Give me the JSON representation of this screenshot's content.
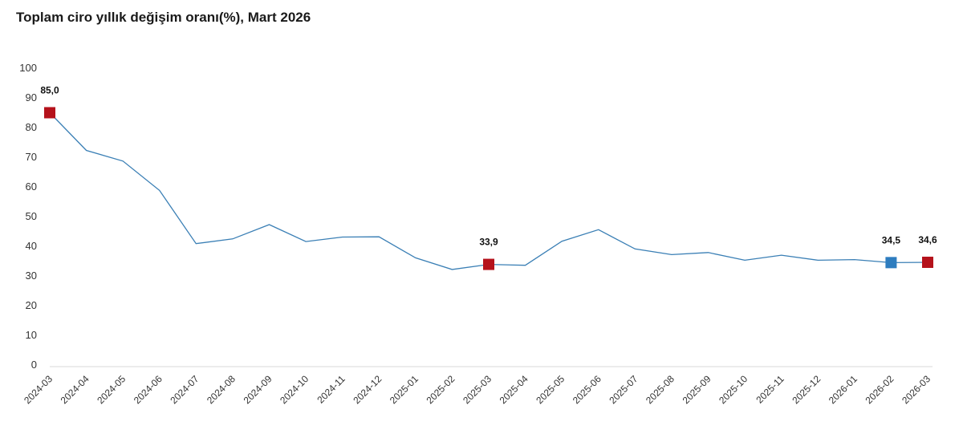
{
  "title": "Toplam ciro yıllık değişim oranı(%), Mart 2026",
  "chart_data": {
    "type": "line",
    "title": "Toplam ciro yıllık değişim oranı(%), Mart 2026",
    "xlabel": "",
    "ylabel": "",
    "ylim": [
      0,
      100
    ],
    "yticks": [
      "0",
      "10",
      "20",
      "30",
      "40",
      "50",
      "60",
      "70",
      "80",
      "90",
      "100"
    ],
    "categories": [
      "2024-03",
      "2024-04",
      "2024-05",
      "2024-06",
      "2024-07",
      "2024-08",
      "2024-09",
      "2024-10",
      "2024-11",
      "2024-12",
      "2025-01",
      "2025-02",
      "2025-03",
      "2025-04",
      "2025-05",
      "2025-06",
      "2025-07",
      "2025-08",
      "2025-09",
      "2025-10",
      "2025-11",
      "2025-12",
      "2026-01",
      "2026-02",
      "2026-03"
    ],
    "series": [
      {
        "values": [
          85.0,
          72.3,
          68.7,
          58.8,
          40.9,
          42.5,
          47.3,
          41.6,
          43.1,
          43.2,
          36.1,
          32.2,
          33.9,
          33.6,
          41.7,
          45.6,
          39.1,
          37.2,
          37.9,
          35.3,
          37.0,
          35.3,
          35.5,
          34.5,
          34.6
        ],
        "color": "#3a7fb5"
      }
    ],
    "markers": [
      {
        "index": 0,
        "label": "85,0",
        "color": "#b5121b"
      },
      {
        "index": 12,
        "label": "33,9",
        "color": "#b5121b"
      },
      {
        "index": 23,
        "label": "34,5",
        "color": "#2e7dbf"
      },
      {
        "index": 24,
        "label": "34,6",
        "color": "#b5121b"
      }
    ],
    "grid": false,
    "legend": "none"
  }
}
